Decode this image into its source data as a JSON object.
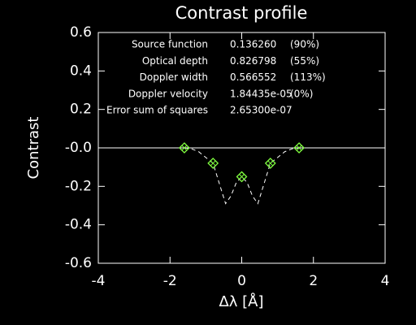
{
  "chart_data": {
    "type": "line",
    "title": "Contrast profile",
    "xlabel": "Δλ [Å]",
    "ylabel": "Contrast",
    "xlim": [
      -4,
      4
    ],
    "xticks": [
      -4,
      -2,
      0,
      2,
      4
    ],
    "ylim": [
      -0.6,
      0.6
    ],
    "yticks": [
      0.6,
      0.4,
      0.2,
      {
        "value": 0,
        "label": "-0.0"
      },
      -0.2,
      -0.4,
      -0.6
    ],
    "series": [
      {
        "color": "#ffffff",
        "style": "dashed",
        "x": [
          -1.6,
          -1.4,
          -1.2,
          -1.0,
          -0.8,
          -0.6,
          -0.45,
          -0.3,
          -0.15,
          0,
          0.15,
          0.3,
          0.45,
          0.6,
          0.8,
          1.0,
          1.2,
          1.4,
          1.6
        ],
        "values": [
          0,
          -0.005,
          -0.02,
          -0.05,
          -0.08,
          -0.2,
          -0.29,
          -0.25,
          -0.18,
          -0.15,
          -0.18,
          -0.25,
          -0.29,
          -0.2,
          -0.08,
          -0.05,
          -0.02,
          -0.005,
          0
        ]
      },
      {
        "color": "#80ff40",
        "marker": "diamond",
        "x": [
          -1.6,
          -0.8,
          0,
          0.8,
          1.6
        ],
        "values": [
          0,
          -0.08,
          -0.15,
          -0.08,
          0
        ]
      }
    ],
    "annotations": [
      [
        "Source function",
        "0.136260",
        "(90%)"
      ],
      [
        "Optical depth",
        "0.826798",
        "(55%)"
      ],
      [
        "Doppler width",
        "0.566552",
        "(113%)"
      ],
      [
        "Doppler velocity",
        "1.84435e-05",
        "(0%)"
      ],
      [
        "Error sum of squares",
        "2.65300e-07"
      ]
    ]
  }
}
